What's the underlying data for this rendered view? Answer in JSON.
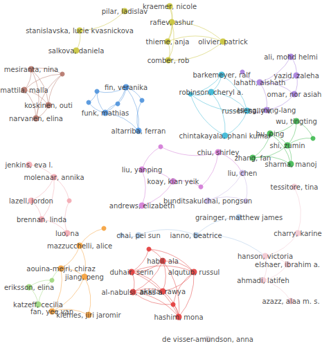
{
  "chart_data": {
    "type": "graph",
    "nodes": [
      {
        "label": "pilar, ladislav",
        "color": "#c9c43a"
      },
      {
        "label": "stanislavska, lucie kvasnickova",
        "color": "#c9c43a"
      },
      {
        "label": "salkova, daniela",
        "color": "#c9c43a"
      },
      {
        "label": "kraemer, nicole",
        "color": "#c9c43a"
      },
      {
        "label": "rafiev, ashur",
        "color": "#c9c43a"
      },
      {
        "label": "thieme, anja",
        "color": "#c9c43a"
      },
      {
        "label": "olivier, patrick",
        "color": "#c9c43a"
      },
      {
        "label": "comber, rob",
        "color": "#c9c43a"
      },
      {
        "label": "mesiranta, nina",
        "color": "#b5756a"
      },
      {
        "label": "mattila, malla",
        "color": "#b5756a"
      },
      {
        "label": "koskinen, outi",
        "color": "#b5756a"
      },
      {
        "label": "narvanen, elina",
        "color": "#b5756a"
      },
      {
        "label": null,
        "color": "#b5756a"
      },
      {
        "label": "fin, veranika",
        "color": "#4e92db"
      },
      {
        "label": "funk, mathias",
        "color": "#4e92db"
      },
      {
        "label": "altarriba, ferran",
        "color": "#4e92db"
      },
      {
        "label": null,
        "color": "#4e92db"
      },
      {
        "label": null,
        "color": "#4e92db"
      },
      {
        "label": null,
        "color": "#4e92db"
      },
      {
        "label": null,
        "color": "#4e92db"
      },
      {
        "label": "barkemeyer, ralf",
        "color": "#39b7d6"
      },
      {
        "label": "robinson, cheryl a.",
        "color": "#39b7d6"
      },
      {
        "label": "russell, sally v.",
        "color": "#39b7d6"
      },
      {
        "label": "chintakayala, phani kumar",
        "color": "#39b7d6"
      },
      {
        "label": null,
        "color": "#39b7d6"
      },
      {
        "label": "ali, mohd helmi",
        "color": "#a57ddc"
      },
      {
        "label": "yazid, zaleha",
        "color": "#a57ddc"
      },
      {
        "label": "lahath, aishath",
        "color": "#a57ddc"
      },
      {
        "label": "omar, nor asiah",
        "color": "#a57ddc"
      },
      {
        "label": "tseng, ming-lang",
        "color": "#a57ddc"
      },
      {
        "label": null,
        "color": "#a57ddc"
      },
      {
        "label": "wu, tingting",
        "color": "#3fb950"
      },
      {
        "label": "hu, ping",
        "color": "#3fb950"
      },
      {
        "label": "shi, zumin",
        "color": "#3fb950"
      },
      {
        "label": "zhang, fan",
        "color": "#3fb950"
      },
      {
        "label": "sharma, manoj",
        "color": "#3fb950"
      },
      {
        "label": null,
        "color": "#3fb950"
      },
      {
        "label": "chiu, shirley",
        "color": "#d27ad6"
      },
      {
        "label": "liu, yanping",
        "color": "#d27ad6"
      },
      {
        "label": "koay, kian yeik",
        "color": "#d27ad6"
      },
      {
        "label": "andrews, elizabeth",
        "color": "#d27ad6"
      },
      {
        "label": null,
        "color": "#d27ad6"
      },
      {
        "label": null,
        "color": "#d27ad6"
      },
      {
        "label": "liu, chen",
        "color": "#c7b6e6"
      },
      {
        "label": "bunditsakulchai, pongsun",
        "color": "#c7b6e6"
      },
      {
        "label": null,
        "color": "#c7b6e6"
      },
      {
        "label": "jenkins, eva l.",
        "color": "#f2a7b0"
      },
      {
        "label": "molenaar, annika",
        "color": "#f2a7b0"
      },
      {
        "label": "lazell, jordon",
        "color": "#f2a7b0"
      },
      {
        "label": "brennan, linda",
        "color": "#f2a7b0"
      },
      {
        "label": "luo, na",
        "color": "#f2a7b0"
      },
      {
        "label": null,
        "color": "#f2a7b0"
      },
      {
        "label": "chai, pei sun",
        "color": "#a8c5e6"
      },
      {
        "label": "ianno, beatrice",
        "color": "#a8c5e6"
      },
      {
        "label": "grainger, matthew james",
        "color": "#a8c5e6"
      },
      {
        "label": null,
        "color": "#a8c5e6"
      },
      {
        "label": "tessitore, tina",
        "color": "#f2c6cf"
      },
      {
        "label": "charry, karine",
        "color": "#f2c6cf"
      },
      {
        "label": "hanson, victoria",
        "color": "#f2c6cf"
      },
      {
        "label": "elshaer, ibrahim a.",
        "color": "#f2c6cf"
      },
      {
        "label": "ahmadi, latifeh",
        "color": "#f2c6cf"
      },
      {
        "label": "azazz, alaa m. s.",
        "color": "#f2c6cf"
      },
      {
        "label": "de visser-amundson, anna",
        "color": "#d9d2d6"
      },
      {
        "label": "mazzucchelli, alice",
        "color": "#f5a03a"
      },
      {
        "label": "aouina-mejri, chiraz",
        "color": "#f5a03a"
      },
      {
        "label": "jiang, peng",
        "color": "#f5a03a"
      },
      {
        "label": "fan, yee van",
        "color": "#f5a03a"
      },
      {
        "label": "klemes, jiri jaromir",
        "color": "#f5a03a"
      },
      {
        "label": null,
        "color": "#f5a03a"
      },
      {
        "label": "eriksson, elina",
        "color": "#9cd67c"
      },
      {
        "label": "katzeff, cecilia",
        "color": "#9cd67c"
      },
      {
        "label": null,
        "color": "#9cd67c"
      },
      {
        "label": "habil, ala",
        "color": "#e23b3b"
      },
      {
        "label": "duhair, serin",
        "color": "#e23b3b"
      },
      {
        "label": "alqutub, russul",
        "color": "#e23b3b"
      },
      {
        "label": "al-nabulsi, anas a.",
        "color": "#e23b3b"
      },
      {
        "label": "akkila, rawya",
        "color": "#e23b3b"
      },
      {
        "label": "hashim, mona",
        "color": "#e23b3b"
      },
      {
        "label": null,
        "color": "#e23b3b"
      },
      {
        "label": null,
        "color": "#e23b3b"
      }
    ],
    "links": [
      [
        0,
        1
      ],
      [
        1,
        2
      ],
      [
        3,
        4
      ],
      [
        4,
        5
      ],
      [
        3,
        5
      ],
      [
        4,
        6
      ],
      [
        5,
        6
      ],
      [
        5,
        7
      ],
      [
        6,
        7
      ],
      [
        4,
        7
      ],
      [
        8,
        9
      ],
      [
        8,
        10
      ],
      [
        8,
        11
      ],
      [
        8,
        12
      ],
      [
        9,
        10
      ],
      [
        9,
        11
      ],
      [
        10,
        11
      ],
      [
        10,
        12
      ],
      [
        11,
        12
      ],
      [
        9,
        12
      ],
      [
        13,
        14
      ],
      [
        13,
        15
      ],
      [
        13,
        16
      ],
      [
        14,
        16
      ],
      [
        14,
        17
      ],
      [
        16,
        17
      ],
      [
        13,
        19
      ],
      [
        14,
        19
      ],
      [
        15,
        18
      ],
      [
        13,
        18
      ],
      [
        14,
        15
      ],
      [
        20,
        21
      ],
      [
        20,
        22
      ],
      [
        21,
        22
      ],
      [
        21,
        24
      ],
      [
        22,
        24
      ],
      [
        20,
        24
      ],
      [
        22,
        23
      ],
      [
        23,
        24
      ],
      [
        21,
        23
      ],
      [
        25,
        26
      ],
      [
        25,
        27
      ],
      [
        26,
        27
      ],
      [
        27,
        28
      ],
      [
        27,
        29
      ],
      [
        28,
        29
      ],
      [
        26,
        28
      ],
      [
        27,
        30
      ],
      [
        29,
        22
      ],
      [
        31,
        32
      ],
      [
        31,
        33
      ],
      [
        32,
        33
      ],
      [
        32,
        34
      ],
      [
        33,
        34
      ],
      [
        33,
        35
      ],
      [
        34,
        35
      ],
      [
        32,
        35
      ],
      [
        31,
        36
      ],
      [
        33,
        36
      ],
      [
        37,
        41
      ],
      [
        38,
        41
      ],
      [
        38,
        39
      ],
      [
        39,
        40
      ],
      [
        38,
        40
      ],
      [
        39,
        42
      ],
      [
        37,
        42
      ],
      [
        43,
        44
      ],
      [
        43,
        45
      ],
      [
        44,
        45
      ],
      [
        37,
        43
      ],
      [
        46,
        47
      ],
      [
        47,
        48
      ],
      [
        48,
        49
      ],
      [
        47,
        49
      ],
      [
        47,
        51
      ],
      [
        49,
        50
      ],
      [
        50,
        51
      ],
      [
        52,
        53
      ],
      [
        53,
        54
      ],
      [
        52,
        55
      ],
      [
        53,
        58
      ],
      [
        56,
        57
      ],
      [
        57,
        58
      ],
      [
        58,
        59
      ],
      [
        59,
        60
      ],
      [
        60,
        61
      ],
      [
        58,
        60
      ],
      [
        63,
        64
      ],
      [
        63,
        65
      ],
      [
        64,
        65
      ],
      [
        65,
        66
      ],
      [
        65,
        67
      ],
      [
        66,
        67
      ],
      [
        63,
        68
      ],
      [
        64,
        66
      ],
      [
        69,
        70
      ],
      [
        69,
        71
      ],
      [
        70,
        71
      ],
      [
        71,
        64
      ],
      [
        72,
        73
      ],
      [
        72,
        74
      ],
      [
        72,
        75
      ],
      [
        72,
        76
      ],
      [
        72,
        77
      ],
      [
        73,
        75
      ],
      [
        73,
        76
      ],
      [
        73,
        74
      ],
      [
        74,
        76
      ],
      [
        74,
        77
      ],
      [
        75,
        76
      ],
      [
        75,
        77
      ],
      [
        76,
        77
      ],
      [
        78,
        72
      ],
      [
        78,
        73
      ],
      [
        78,
        74
      ],
      [
        79,
        75
      ],
      [
        79,
        77
      ],
      [
        79,
        74
      ],
      [
        73,
        77
      ]
    ]
  }
}
